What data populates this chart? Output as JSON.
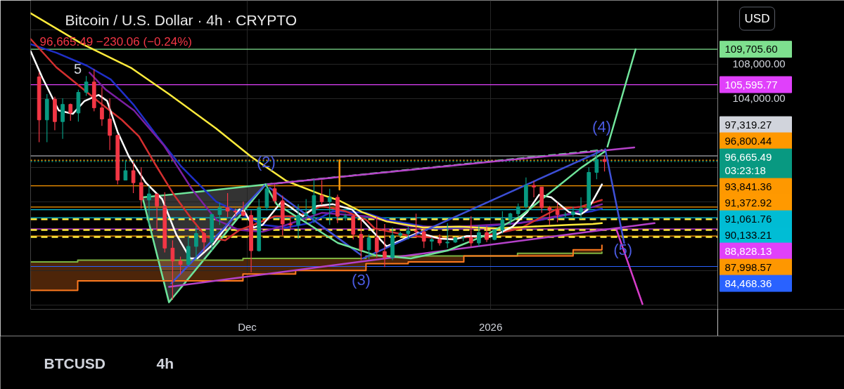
{
  "chart_data": {
    "type": "candlestick",
    "title": "Bitcoin / U.S. Dollar · 4h · CRYPTO",
    "subtitle": "96,665.49  −230.06 (−0.24%)",
    "x": [
      "2025-11-04T12:00",
      "2025-11-05T12:00",
      "2025-11-06T12:00",
      "2025-11-07T12:00",
      "2025-11-08T12:00",
      "2025-11-09T12:00",
      "2025-11-10T12:00",
      "2025-11-11T12:00",
      "2025-11-12T12:00",
      "2025-11-13T12:00",
      "2025-11-14T12:00",
      "2025-11-15T12:00",
      "2025-11-16T12:00",
      "2025-11-17T12:00",
      "2025-11-18T12:00",
      "2025-11-19T12:00",
      "2025-11-20T12:00",
      "2025-11-21T12:00",
      "2025-11-22T12:00",
      "2025-11-23T12:00",
      "2025-11-24T12:00",
      "2025-11-25T12:00",
      "2025-11-26T12:00",
      "2025-11-27T12:00",
      "2025-11-28T12:00",
      "2025-11-29T12:00",
      "2025-11-30T12:00",
      "2025-12-01T12:00",
      "2025-12-02T12:00",
      "2025-12-03T12:00",
      "2025-12-04T12:00",
      "2025-12-05T12:00",
      "2025-12-06T12:00",
      "2025-12-07T12:00",
      "2025-12-08T12:00",
      "2025-12-09T12:00",
      "2025-12-10T12:00",
      "2025-12-11T12:00",
      "2025-12-12T12:00",
      "2025-12-13T12:00",
      "2025-12-14T12:00",
      "2025-12-15T12:00",
      "2025-12-16T12:00",
      "2025-12-17T12:00",
      "2025-12-18T12:00",
      "2025-12-19T12:00",
      "2025-12-20T12:00",
      "2025-12-21T12:00",
      "2025-12-22T12:00",
      "2025-12-23T12:00",
      "2025-12-24T12:00",
      "2025-12-25T12:00",
      "2025-12-26T12:00",
      "2025-12-27T12:00",
      "2025-12-28T12:00",
      "2025-12-29T12:00",
      "2025-12-30T12:00",
      "2025-12-31T12:00",
      "2026-01-01T12:00",
      "2026-01-02T12:00",
      "2026-01-03T12:00",
      "2026-01-04T12:00",
      "2026-01-05T12:00",
      "2026-01-06T12:00",
      "2026-01-07T12:00",
      "2026-01-08T12:00",
      "2026-01-09T12:00",
      "2026-01-10T12:00",
      "2026-01-11T12:00",
      "2026-01-12T12:00",
      "2026-01-13T12:00",
      "2026-01-14T12:00",
      "2026-01-15T12:00"
    ],
    "ohlc": [
      [
        106500,
        107000,
        98900,
        101500
      ],
      [
        101500,
        104500,
        98900,
        103900
      ],
      [
        103900,
        104200,
        100300,
        101300
      ],
      [
        101300,
        104000,
        99300,
        103300
      ],
      [
        103300,
        103400,
        101400,
        102300
      ],
      [
        102300,
        105000,
        101300,
        104700
      ],
      [
        104700,
        106600,
        104300,
        105900
      ],
      [
        105900,
        107400,
        102500,
        102900
      ],
      [
        102900,
        105300,
        100800,
        101600
      ],
      [
        101600,
        104000,
        98000,
        99700
      ],
      [
        99700,
        99800,
        94000,
        94500
      ],
      [
        94500,
        96800,
        94500,
        95600
      ],
      [
        95600,
        96600,
        93000,
        94200
      ],
      [
        94200,
        96000,
        91200,
        92200
      ],
      [
        92200,
        93800,
        89200,
        92900
      ],
      [
        92900,
        92900,
        88600,
        91500
      ],
      [
        91500,
        93100,
        86100,
        86600
      ],
      [
        86600,
        87500,
        80600,
        85100
      ],
      [
        85100,
        85600,
        83500,
        84700
      ],
      [
        84700,
        88000,
        84700,
        86800
      ],
      [
        86800,
        89200,
        85300,
        88300
      ],
      [
        88300,
        88500,
        86200,
        87300
      ],
      [
        87300,
        90600,
        86300,
        90500
      ],
      [
        90500,
        91900,
        89300,
        91300
      ],
      [
        91300,
        93000,
        90200,
        90900
      ],
      [
        90900,
        91200,
        90300,
        90800
      ],
      [
        90800,
        92000,
        90300,
        90400
      ],
      [
        90400,
        91000,
        83800,
        86300
      ],
      [
        86300,
        92300,
        86200,
        91300
      ],
      [
        91300,
        94100,
        91000,
        93500
      ],
      [
        93500,
        94000,
        91800,
        92100
      ],
      [
        92100,
        92700,
        88100,
        89400
      ],
      [
        89400,
        90300,
        88900,
        89300
      ],
      [
        89300,
        91700,
        87700,
        90400
      ],
      [
        90400,
        92300,
        89600,
        90600
      ],
      [
        90600,
        94600,
        89500,
        92700
      ],
      [
        92700,
        94500,
        91600,
        92000
      ],
      [
        92000,
        93500,
        89300,
        92500
      ],
      [
        92500,
        92800,
        89500,
        90300
      ],
      [
        90300,
        90600,
        89800,
        90300
      ],
      [
        90300,
        90500,
        87600,
        88200
      ],
      [
        88200,
        90000,
        85200,
        86400
      ],
      [
        86400,
        88200,
        85300,
        87800
      ],
      [
        87800,
        90300,
        85500,
        86200
      ],
      [
        86200,
        89400,
        84400,
        85500
      ],
      [
        85500,
        89000,
        85200,
        88100
      ],
      [
        88100,
        88500,
        87900,
        88300
      ],
      [
        88300,
        89100,
        87600,
        88600
      ],
      [
        88600,
        90600,
        87900,
        88500
      ],
      [
        88500,
        88900,
        86600,
        87400
      ],
      [
        87400,
        87900,
        86400,
        87600
      ],
      [
        87600,
        88200,
        86900,
        87200
      ],
      [
        87200,
        89500,
        86600,
        87300
      ],
      [
        87300,
        87900,
        87200,
        87800
      ],
      [
        87800,
        88000,
        87400,
        87800
      ],
      [
        87800,
        90300,
        86800,
        87200
      ],
      [
        87200,
        89300,
        86800,
        88400
      ],
      [
        88400,
        89200,
        87300,
        87600
      ],
      [
        87600,
        88800,
        87500,
        88700
      ],
      [
        88700,
        90900,
        88300,
        89900
      ],
      [
        89900,
        90700,
        89300,
        90600
      ],
      [
        90600,
        91800,
        90300,
        91400
      ],
      [
        91400,
        94800,
        91200,
        93900
      ],
      [
        93900,
        94400,
        92500,
        93700
      ],
      [
        93700,
        93700,
        90700,
        91300
      ],
      [
        91300,
        91500,
        89300,
        91000
      ],
      [
        91000,
        91900,
        89600,
        90500
      ],
      [
        90500,
        90800,
        90200,
        90500
      ],
      [
        90500,
        91400,
        90200,
        90800
      ],
      [
        90800,
        92500,
        90000,
        91200
      ],
      [
        91200,
        96000,
        91000,
        95400
      ],
      [
        95400,
        97900,
        94600,
        96900
      ],
      [
        96900,
        97300,
        95500,
        96665.49
      ]
    ],
    "colors": [
      "#f23645",
      "#089981",
      "#f23645",
      "#089981",
      "#f23645",
      "#089981",
      "#089981",
      "#f23645",
      "#f23645",
      "#f23645",
      "#f23645",
      "#089981",
      "#f23645",
      "#f23645",
      "#089981",
      "#f23645",
      "#f23645",
      "#f23645",
      "#f23645",
      "#089981",
      "#089981",
      "#f23645",
      "#089981",
      "#089981",
      "#f23645",
      "#f23645",
      "#f23645",
      "#f23645",
      "#089981",
      "#089981",
      "#f23645",
      "#f23645",
      "#f23645",
      "#089981",
      "#089981",
      "#089981",
      "#f23645",
      "#089981",
      "#f23645",
      "#089981",
      "#f23645",
      "#f23645",
      "#089981",
      "#f23645",
      "#f23645",
      "#089981",
      "#089981",
      "#089981",
      "#f23645",
      "#f23645",
      "#089981",
      "#f23645",
      "#089981",
      "#089981",
      "#089981",
      "#f23645",
      "#089981",
      "#f23645",
      "#089981",
      "#089981",
      "#089981",
      "#089981",
      "#089981",
      "#f23645",
      "#f23645",
      "#f23645",
      "#f23645",
      "#089981",
      "#089981",
      "#089981",
      "#089981",
      "#089981",
      "#f23645"
    ],
    "series": [
      {
        "type": "line",
        "color": "#6ee59a",
        "x": [
          "2025-11-17T16:00",
          "2025-11-21T01:00",
          "2025-12-03T08:00"
        ],
        "values": [
          92500,
          92800,
          94000
        ],
        "lower": [
          92500,
          80300,
          94000
        ],
        "upper": [
          92500,
          92800,
          94000
        ]
      },
      {
        "type": "line",
        "color": "#6de49b",
        "x": [
          "2025-11-17T16:00",
          "2025-11-21T01:00",
          "2025-12-03T08:00"
        ],
        "values": [
          92500,
          80300,
          94000
        ]
      },
      {
        "type": "step",
        "color": "#7cb342",
        "x": [
          "2025-11-03T10:00",
          "2025-11-09T10:00",
          "2025-11-30T11:00",
          "2025-12-07T04:00",
          "2025-12-16T03:00",
          "2025-12-21T12:00",
          "2025-12-28T14:00",
          "2026-01-04T10:00",
          "2026-01-11T12:00",
          "2026-01-15T04:00"
        ],
        "values": [
          85000,
          85200,
          85400,
          85400,
          85700,
          85700,
          85700,
          86000,
          86000,
          86200
        ]
      },
      {
        "type": "step",
        "color": "#ff7a1f",
        "x": [
          "2025-11-03T10:00",
          "2025-11-09T10:00",
          "2025-11-30T11:00",
          "2025-12-07T04:00",
          "2025-12-16T03:00",
          "2025-12-21T12:00",
          "2025-12-28T14:00",
          "2026-01-04T10:00",
          "2026-01-11T12:00",
          "2026-01-15T04:00"
        ],
        "values": [
          81700,
          82800,
          83600,
          84000,
          84800,
          85000,
          85700,
          85700,
          86400,
          87000
        ],
        "lower": [
          81700,
          82800,
          83600,
          84000,
          84800,
          85000,
          85700,
          85700,
          86000,
          86200
        ],
        "upper": [
          85000,
          85200,
          85400,
          85400,
          85700,
          85700,
          85700,
          86000,
          86400,
          87000
        ]
      },
      {
        "type": "line",
        "color": "#1f2fc8",
        "x": [
          "2025-11-03T10:00",
          "2025-11-06T17:00",
          "2025-11-10T14:00",
          "2025-11-13T15:00",
          "2025-11-16T14:00",
          "2025-11-19T13:00",
          "2025-11-22T14:00",
          "2025-11-27T01:00",
          "2025-11-30T00:00",
          "2025-12-02T23:00",
          "2025-12-06T00:00",
          "2025-12-08T23:00",
          "2025-12-11T22:00",
          "2025-12-16T03:00",
          "2025-12-18T18:00",
          "2025-12-24T23:00",
          "2025-12-31T03:00",
          "2026-01-06T07:00",
          "2026-01-10T23:00",
          "2026-01-14T00:00",
          "2026-01-15T04:00"
        ],
        "values": [
          110300,
          109300,
          107800,
          106200,
          103200,
          99600,
          96100,
          92000,
          90700,
          89300,
          89000,
          89500,
          90900,
          90700,
          89900,
          88900,
          89100,
          89700,
          90500,
          90900,
          91200
        ]
      },
      {
        "type": "line",
        "color": "#7b1fa2",
        "x": [
          "2025-11-10T22:00",
          "2025-11-13T00:00",
          "2025-11-16T14:00",
          "2025-11-20T10:00",
          "2025-11-24T00:00",
          "2025-11-27T01:00",
          "2025-11-30T00:00",
          "2025-12-02T23:00",
          "2025-12-06T00:00",
          "2025-12-10T12:00",
          "2025-12-16T03:00",
          "2025-12-21T20:00",
          "2025-12-28T00:00",
          "2026-01-04T19:00",
          "2026-01-11T03:00",
          "2026-01-15T04:00"
        ],
        "values": [
          107000,
          105000,
          102600,
          98500,
          93400,
          89900,
          88700,
          88500,
          89300,
          90700,
          90300,
          89100,
          89100,
          89500,
          90600,
          91700
        ]
      },
      {
        "type": "line",
        "color": "#d32f2f",
        "x": [
          "2025-11-03T10:00",
          "2025-11-06T17:00",
          "2025-11-09T10:00",
          "2025-11-12T02:00",
          "2025-11-15T01:00",
          "2025-11-17T05:00",
          "2025-11-19T06:00",
          "2025-11-21T16:00",
          "2025-11-24T00:00",
          "2025-11-25T19:00",
          "2025-11-28T05:00",
          "2025-11-30T00:00",
          "2025-12-01T19:00",
          "2025-12-04T12:00",
          "2025-12-07T11:00",
          "2025-12-10T12:00",
          "2025-12-13T11:00",
          "2025-12-16T03:00",
          "2025-12-17T05:00",
          "2025-12-21T20:00",
          "2025-12-26T11:00",
          "2025-12-31T03:00",
          "2026-01-04T19:00",
          "2026-01-09T08:00",
          "2026-01-12T11:00",
          "2026-01-15T04:00"
        ],
        "values": [
          110900,
          107600,
          105600,
          103600,
          101500,
          99600,
          96400,
          92800,
          89900,
          87900,
          87500,
          88700,
          89300,
          90300,
          90300,
          91500,
          90900,
          89900,
          88900,
          88000,
          87700,
          88000,
          88900,
          91100,
          91400,
          92200
        ]
      },
      {
        "type": "line",
        "color": "#ffeb3b",
        "x": [
          "2025-11-03T10:00",
          "2025-11-10T01:00",
          "2025-11-16T07:00",
          "2025-11-21T01:00",
          "2025-11-27T01:00",
          "2025-12-01T13:00",
          "2025-12-06T00:00",
          "2025-12-10T12:00",
          "2025-12-12T13:00",
          "2025-12-15T14:00",
          "2025-12-18T18:00",
          "2025-12-23T10:00",
          "2025-12-28T00:00",
          "2026-01-01T15:00",
          "2026-01-06T07:00",
          "2026-01-10T23:00",
          "2026-01-14T00:00",
          "2026-01-15T04:00"
        ],
        "values": [
          113900,
          110300,
          107500,
          104500,
          100500,
          97200,
          94400,
          92800,
          92200,
          90800,
          89700,
          89000,
          89100,
          88900,
          89100,
          89300,
          89400,
          89500
        ]
      },
      {
        "type": "line",
        "color": "#ffffff",
        "x": [
          "2025-11-03T10:00",
          "2025-11-04T22:00",
          "2025-11-07T00:00",
          "2025-11-08T19:00",
          "2025-11-10T07:00",
          "2025-11-12T02:00",
          "2025-11-13T04:00",
          "2025-11-14T12:00",
          "2025-11-15T23:00",
          "2025-11-18T02:00",
          "2025-11-20T04:00",
          "2025-11-21T23:00",
          "2025-11-23T18:00",
          "2025-11-24T15:00",
          "2025-11-26T17:00",
          "2025-11-28T12:00",
          "2025-11-30T00:00",
          "2025-11-30T15:00",
          "2025-12-01T19:00",
          "2025-12-02T23:00",
          "2025-12-05T09:00",
          "2025-12-06T07:00",
          "2025-12-08T02:00",
          "2025-12-09T21:00",
          "2025-12-11T22:00",
          "2025-12-14T08:00",
          "2025-12-16T03:00",
          "2025-12-18T18:00",
          "2025-12-20T06:00",
          "2025-12-22T18:00",
          "2025-12-25T13:00",
          "2025-12-27T08:00",
          "2025-12-28T23:00",
          "2026-01-01T09:00",
          "2026-01-03T19:00",
          "2026-01-05T16:00",
          "2026-01-07T04:00",
          "2026-01-08T17:00",
          "2026-01-10T23:00",
          "2026-01-12T11:00",
          "2026-01-13T09:00",
          "2026-01-14T06:00",
          "2026-01-15T04:00"
        ],
        "values": [
          109500,
          106400,
          102600,
          102200,
          103700,
          104400,
          103700,
          100100,
          97200,
          94200,
          92300,
          88200,
          85400,
          85400,
          87100,
          89300,
          91100,
          90900,
          89000,
          89300,
          92000,
          91500,
          90300,
          91500,
          91700,
          91100,
          89400,
          86800,
          87400,
          88400,
          87700,
          87600,
          88000,
          88000,
          89100,
          90800,
          92800,
          92500,
          90800,
          90500,
          91100,
          92500,
          94000
        ]
      },
      {
        "type": "line",
        "color": "#70e69c",
        "line_style": "dashed",
        "x": [
          "2025-12-03T08:00",
          "2026-01-15T04:00"
        ],
        "values": [
          94000,
          98000
        ]
      },
      {
        "type": "line",
        "color": "#b542c8",
        "x": [
          "2025-12-03T08:00",
          "2026-01-19T07:00"
        ],
        "values": [
          94000,
          98300
        ]
      },
      {
        "type": "line",
        "color": "#b441c9",
        "x": [
          "2025-11-21T01:00",
          "2026-01-21T21:00"
        ],
        "values": [
          82100,
          89500
        ]
      },
      {
        "type": "line",
        "color": "#3d4fd6",
        "x": [
          "2025-11-21T08:00",
          "2025-12-03T08:00"
        ],
        "values": [
          82500,
          94000
        ]
      },
      {
        "type": "line",
        "color": "#3e50d7",
        "x": [
          "2025-12-03T21:00",
          "2025-12-15T12:00"
        ],
        "values": [
          93600,
          85800
        ]
      },
      {
        "type": "line",
        "color": "#3c4ed5",
        "x": [
          "2025-12-15T17:00",
          "2026-01-14T21:00"
        ],
        "values": [
          85400,
          97800
        ]
      },
      {
        "type": "line",
        "color": "#3f51d8",
        "x": [
          "2026-01-15T14:00",
          "2026-01-18T00:00"
        ],
        "values": [
          98100,
          87200
        ]
      },
      {
        "type": "line",
        "color": "#d63cc9",
        "x": [
          "2026-01-16T23:00",
          "2026-01-20T08:00"
        ],
        "values": [
          88900,
          80100
        ]
      },
      {
        "type": "line",
        "color": "#6fe399",
        "x": [
          "2025-12-03T08:00",
          "2025-12-04T18:00",
          "2025-12-08T23:00",
          "2025-12-12T13:00",
          "2025-12-17T05:00",
          "2025-12-21T20:00",
          "2025-12-26T11:00",
          "2025-12-31T03:00",
          "2026-01-04T19:00",
          "2026-01-09T08:00",
          "2026-01-12T11:00",
          "2026-01-15T12:00"
        ],
        "values": [
          94000,
          91700,
          89300,
          87200,
          85800,
          85400,
          86300,
          88000,
          90300,
          93600,
          95900,
          97800
        ]
      },
      {
        "type": "line",
        "color": "#72e79d",
        "x": [
          "2026-01-15T21:00",
          "2026-01-19T11:00"
        ],
        "values": [
          98400,
          109700
        ]
      },
      {
        "type": "line",
        "color": "#fb9a0a",
        "x": [
          "2025-12-12T18:00",
          "2025-12-12T18:00"
        ],
        "values": [
          96800,
          93400
        ]
      }
    ],
    "xlim": [
      "2025-11-03T10:00",
      "2026-01-29T22:00"
    ],
    "xticks": [
      {
        "value": "2025-12-01",
        "label": "Dec"
      },
      {
        "value": "2026-01-01",
        "label": "2026"
      }
    ],
    "ylim": [
      79490,
      115390
    ],
    "yticks": [
      {
        "value": 112000,
        "label": null
      },
      {
        "value": 108000,
        "label": "108,000.00"
      },
      {
        "value": 104000,
        "label": "104,000.00"
      },
      {
        "value": 100000,
        "label": null
      },
      {
        "value": 96000,
        "label": null
      },
      {
        "value": 92000,
        "label": null
      },
      {
        "value": 88000,
        "label": null
      },
      {
        "value": 84000,
        "label": null
      },
      {
        "value": 80000,
        "label": null
      }
    ],
    "grid": true,
    "ref_lines": [
      {
        "axis": "y",
        "value": 109705.6,
        "label": "109,705.60",
        "color": "#7ee08f"
      },
      {
        "axis": "y",
        "value": 105595.77,
        "label": "105,595.77",
        "color": "#e040fb"
      },
      {
        "axis": "y",
        "value": 97319.27,
        "label": "97,319.27",
        "color": "#d1d4dc"
      },
      {
        "axis": "y",
        "value": 96800.44,
        "label": "96,800.44",
        "color": "#ff9800",
        "line_style": "dotted"
      },
      {
        "axis": "y",
        "value": 96665.49,
        "label": "96,665.49\n03:23:18",
        "color": "#089981",
        "line_style": "dotted"
      },
      {
        "axis": "y",
        "value": 93841.36,
        "label": "93,841.36",
        "color": "#fe9800"
      },
      {
        "axis": "y",
        "value": 91372.92,
        "label": "91,372.92",
        "color": "#ff9900"
      },
      {
        "axis": "y",
        "value": 91061.76,
        "label": "91,061.76",
        "color": "#00bcd4"
      },
      {
        "axis": "y",
        "value": 90133.21,
        "label": "90,133.21",
        "color": "#00bdd5"
      },
      {
        "axis": "y",
        "value": 88828.13,
        "label": "88,828.13",
        "color": "#e041fa"
      },
      {
        "axis": "y",
        "value": 87998.57,
        "label": "87,998.57",
        "color": "#fe9701"
      },
      {
        "axis": "y",
        "value": 84468.36,
        "label": "84,468.36",
        "color": "#2962ff"
      },
      {
        "axis": "y",
        "value": 89950,
        "color": "#ffeb3b",
        "line_style": "dashed"
      },
      {
        "axis": "y",
        "value": 88700,
        "color": "#feea3a",
        "line_style": "dashed"
      },
      {
        "axis": "y",
        "value": 87900,
        "color": "#ffec3c",
        "line_style": "dashed"
      }
    ],
    "annotations": [
      "5",
      "USD",
      {
        "text": "(2)",
        "x": "2025-12-03T10:00",
        "y": 96600
      },
      "(3)",
      "(4)",
      {
        "text": "(5)",
        "x": "2026-01-17T20:00",
        "y": 86400
      },
      "BTCUSD",
      "4h"
    ]
  }
}
